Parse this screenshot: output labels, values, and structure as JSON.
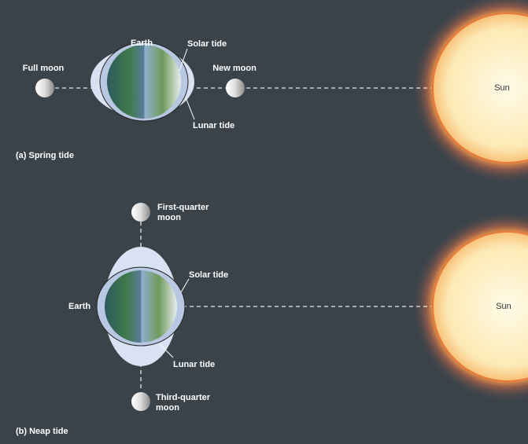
{
  "panels": [
    {
      "caption": "(a) Spring tide",
      "earth": "Earth",
      "solar_tide": "Solar tide",
      "lunar_tide": "Lunar tide",
      "full_moon": "Full moon",
      "new_moon": "New moon",
      "sun": "Sun"
    },
    {
      "caption": "(b) Neap tide",
      "earth": "Earth",
      "solar_tide": "Solar tide",
      "lunar_tide": "Lunar tide",
      "first_quarter_moon": [
        "First-quarter",
        "moon"
      ],
      "third_quarter_moon": [
        "Third-quarter",
        "moon"
      ],
      "sun": "Sun"
    }
  ]
}
